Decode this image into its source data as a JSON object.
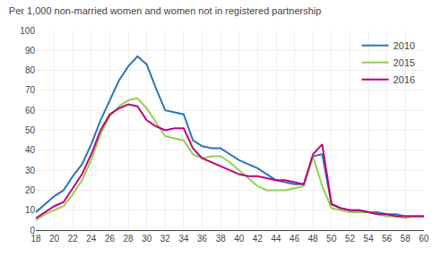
{
  "chart_data": {
    "type": "line",
    "title": "Per 1,000 non-married women and women not in registered partnership",
    "x": [
      18,
      19,
      20,
      21,
      22,
      23,
      24,
      25,
      26,
      27,
      28,
      29,
      30,
      31,
      32,
      33,
      34,
      35,
      36,
      37,
      38,
      39,
      40,
      41,
      42,
      43,
      44,
      45,
      46,
      47,
      48,
      49,
      50,
      51,
      52,
      53,
      54,
      55,
      56,
      57,
      58,
      59,
      60
    ],
    "series": [
      {
        "name": "2010",
        "color": "#2e75b6",
        "values": [
          9,
          13,
          17,
          20,
          27,
          33,
          43,
          55,
          65,
          75,
          82,
          87,
          83,
          71,
          60,
          59,
          58,
          45,
          42,
          41,
          41,
          38,
          35,
          33,
          31,
          28,
          25,
          24,
          23,
          23,
          37,
          38,
          13,
          11,
          10,
          10,
          9,
          9,
          8,
          8,
          7,
          7,
          7
        ]
      },
      {
        "name": "2015",
        "color": "#92d050",
        "values": [
          5,
          8,
          10,
          12,
          18,
          25,
          35,
          48,
          57,
          62,
          65,
          66,
          61,
          54,
          47,
          46,
          45,
          38,
          36,
          37,
          37,
          34,
          30,
          26,
          22,
          20,
          20,
          20,
          21,
          22,
          37,
          22,
          11,
          10,
          9,
          9,
          9,
          8,
          7,
          7,
          6,
          7,
          7
        ]
      },
      {
        "name": "2016",
        "color": "#c00080",
        "values": [
          6,
          9,
          12,
          14,
          21,
          28,
          38,
          50,
          58,
          61,
          63,
          62,
          55,
          52,
          50,
          51,
          51,
          41,
          36,
          34,
          32,
          30,
          28,
          27,
          27,
          26,
          25,
          25,
          24,
          23,
          38,
          43,
          13,
          11,
          10,
          10,
          9,
          8,
          8,
          7,
          7,
          7,
          7
        ]
      }
    ],
    "xlim": [
      18,
      60
    ],
    "xticks": [
      18,
      20,
      22,
      24,
      26,
      28,
      30,
      32,
      34,
      36,
      38,
      40,
      42,
      44,
      46,
      48,
      50,
      52,
      54,
      56,
      58,
      60
    ],
    "ylim": [
      0,
      100
    ],
    "yticks": [
      0,
      10,
      20,
      30,
      40,
      50,
      60,
      70,
      80,
      90,
      100
    ],
    "grid": true,
    "legend": "upper right"
  }
}
